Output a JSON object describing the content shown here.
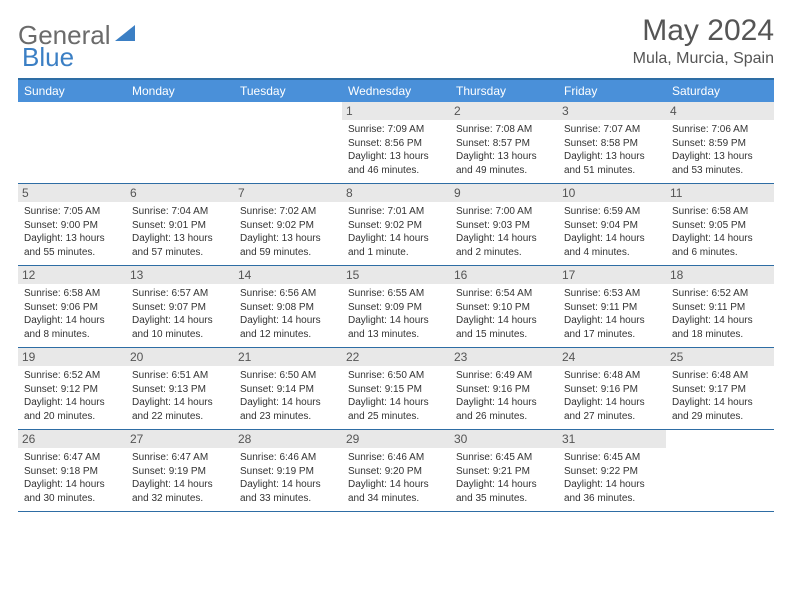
{
  "logo": {
    "part1": "General",
    "part2": "Blue"
  },
  "title": "May 2024",
  "location": "Mula, Murcia, Spain",
  "colors": {
    "header_bg": "#4a90d9",
    "header_border": "#2e6da4",
    "daynum_bg": "#e8e8e8",
    "logo_gray": "#6b6b6b",
    "logo_blue": "#3b7fc4"
  },
  "day_labels": [
    "Sunday",
    "Monday",
    "Tuesday",
    "Wednesday",
    "Thursday",
    "Friday",
    "Saturday"
  ],
  "weeks": [
    [
      {
        "n": "",
        "sr": "",
        "ss": "",
        "dl": ""
      },
      {
        "n": "",
        "sr": "",
        "ss": "",
        "dl": ""
      },
      {
        "n": "",
        "sr": "",
        "ss": "",
        "dl": ""
      },
      {
        "n": "1",
        "sr": "7:09 AM",
        "ss": "8:56 PM",
        "dl": "13 hours and 46 minutes."
      },
      {
        "n": "2",
        "sr": "7:08 AM",
        "ss": "8:57 PM",
        "dl": "13 hours and 49 minutes."
      },
      {
        "n": "3",
        "sr": "7:07 AM",
        "ss": "8:58 PM",
        "dl": "13 hours and 51 minutes."
      },
      {
        "n": "4",
        "sr": "7:06 AM",
        "ss": "8:59 PM",
        "dl": "13 hours and 53 minutes."
      }
    ],
    [
      {
        "n": "5",
        "sr": "7:05 AM",
        "ss": "9:00 PM",
        "dl": "13 hours and 55 minutes."
      },
      {
        "n": "6",
        "sr": "7:04 AM",
        "ss": "9:01 PM",
        "dl": "13 hours and 57 minutes."
      },
      {
        "n": "7",
        "sr": "7:02 AM",
        "ss": "9:02 PM",
        "dl": "13 hours and 59 minutes."
      },
      {
        "n": "8",
        "sr": "7:01 AM",
        "ss": "9:02 PM",
        "dl": "14 hours and 1 minute."
      },
      {
        "n": "9",
        "sr": "7:00 AM",
        "ss": "9:03 PM",
        "dl": "14 hours and 2 minutes."
      },
      {
        "n": "10",
        "sr": "6:59 AM",
        "ss": "9:04 PM",
        "dl": "14 hours and 4 minutes."
      },
      {
        "n": "11",
        "sr": "6:58 AM",
        "ss": "9:05 PM",
        "dl": "14 hours and 6 minutes."
      }
    ],
    [
      {
        "n": "12",
        "sr": "6:58 AM",
        "ss": "9:06 PM",
        "dl": "14 hours and 8 minutes."
      },
      {
        "n": "13",
        "sr": "6:57 AM",
        "ss": "9:07 PM",
        "dl": "14 hours and 10 minutes."
      },
      {
        "n": "14",
        "sr": "6:56 AM",
        "ss": "9:08 PM",
        "dl": "14 hours and 12 minutes."
      },
      {
        "n": "15",
        "sr": "6:55 AM",
        "ss": "9:09 PM",
        "dl": "14 hours and 13 minutes."
      },
      {
        "n": "16",
        "sr": "6:54 AM",
        "ss": "9:10 PM",
        "dl": "14 hours and 15 minutes."
      },
      {
        "n": "17",
        "sr": "6:53 AM",
        "ss": "9:11 PM",
        "dl": "14 hours and 17 minutes."
      },
      {
        "n": "18",
        "sr": "6:52 AM",
        "ss": "9:11 PM",
        "dl": "14 hours and 18 minutes."
      }
    ],
    [
      {
        "n": "19",
        "sr": "6:52 AM",
        "ss": "9:12 PM",
        "dl": "14 hours and 20 minutes."
      },
      {
        "n": "20",
        "sr": "6:51 AM",
        "ss": "9:13 PM",
        "dl": "14 hours and 22 minutes."
      },
      {
        "n": "21",
        "sr": "6:50 AM",
        "ss": "9:14 PM",
        "dl": "14 hours and 23 minutes."
      },
      {
        "n": "22",
        "sr": "6:50 AM",
        "ss": "9:15 PM",
        "dl": "14 hours and 25 minutes."
      },
      {
        "n": "23",
        "sr": "6:49 AM",
        "ss": "9:16 PM",
        "dl": "14 hours and 26 minutes."
      },
      {
        "n": "24",
        "sr": "6:48 AM",
        "ss": "9:16 PM",
        "dl": "14 hours and 27 minutes."
      },
      {
        "n": "25",
        "sr": "6:48 AM",
        "ss": "9:17 PM",
        "dl": "14 hours and 29 minutes."
      }
    ],
    [
      {
        "n": "26",
        "sr": "6:47 AM",
        "ss": "9:18 PM",
        "dl": "14 hours and 30 minutes."
      },
      {
        "n": "27",
        "sr": "6:47 AM",
        "ss": "9:19 PM",
        "dl": "14 hours and 32 minutes."
      },
      {
        "n": "28",
        "sr": "6:46 AM",
        "ss": "9:19 PM",
        "dl": "14 hours and 33 minutes."
      },
      {
        "n": "29",
        "sr": "6:46 AM",
        "ss": "9:20 PM",
        "dl": "14 hours and 34 minutes."
      },
      {
        "n": "30",
        "sr": "6:45 AM",
        "ss": "9:21 PM",
        "dl": "14 hours and 35 minutes."
      },
      {
        "n": "31",
        "sr": "6:45 AM",
        "ss": "9:22 PM",
        "dl": "14 hours and 36 minutes."
      },
      {
        "n": "",
        "sr": "",
        "ss": "",
        "dl": ""
      }
    ]
  ],
  "labels": {
    "sunrise": "Sunrise: ",
    "sunset": "Sunset: ",
    "daylight": "Daylight: "
  }
}
